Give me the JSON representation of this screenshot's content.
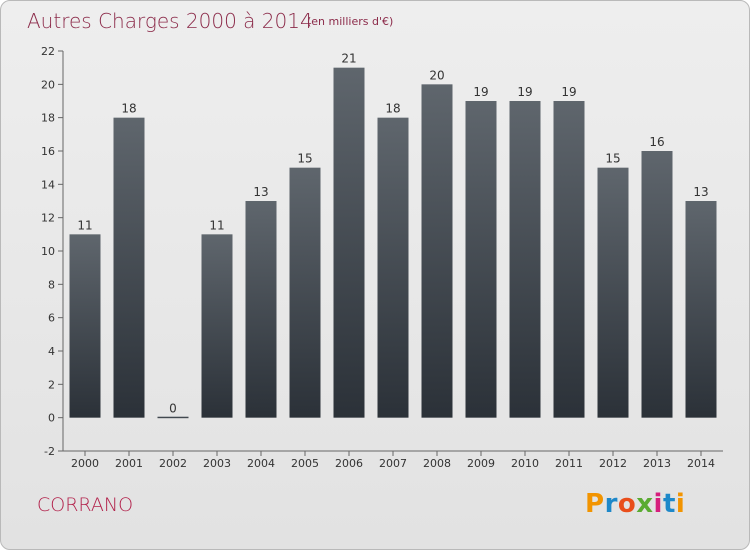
{
  "header": {
    "title": "Autres Charges 2000 à 2014",
    "subtitle": "(en milliers d'€)"
  },
  "commune": "CORRANO",
  "logo": {
    "text": "Proxiti",
    "colors": [
      "#f29400",
      "#1e88c9",
      "#e94e1b",
      "#5aab32",
      "#d61f7c",
      "#1e88c9",
      "#f29400"
    ]
  },
  "colors": {
    "title": "#8c2b4a",
    "bar_top": "#5f666d",
    "bar_bottom": "#2b3138"
  },
  "chart_data": {
    "type": "bar",
    "title": "Autres Charges 2000 à 2014",
    "subtitle": "(en milliers d'€)",
    "xlabel": "",
    "ylabel": "",
    "categories": [
      "2000",
      "2001",
      "2002",
      "2003",
      "2004",
      "2005",
      "2006",
      "2007",
      "2008",
      "2009",
      "2010",
      "2011",
      "2012",
      "2013",
      "2014"
    ],
    "values": [
      11,
      18,
      0,
      11,
      13,
      15,
      21,
      18,
      20,
      19,
      19,
      19,
      15,
      16,
      13
    ],
    "ylim": [
      -2,
      22
    ],
    "yticks": [
      -2,
      0,
      2,
      4,
      6,
      8,
      10,
      12,
      14,
      16,
      18,
      20,
      22
    ],
    "grid": false,
    "legend": "none"
  }
}
